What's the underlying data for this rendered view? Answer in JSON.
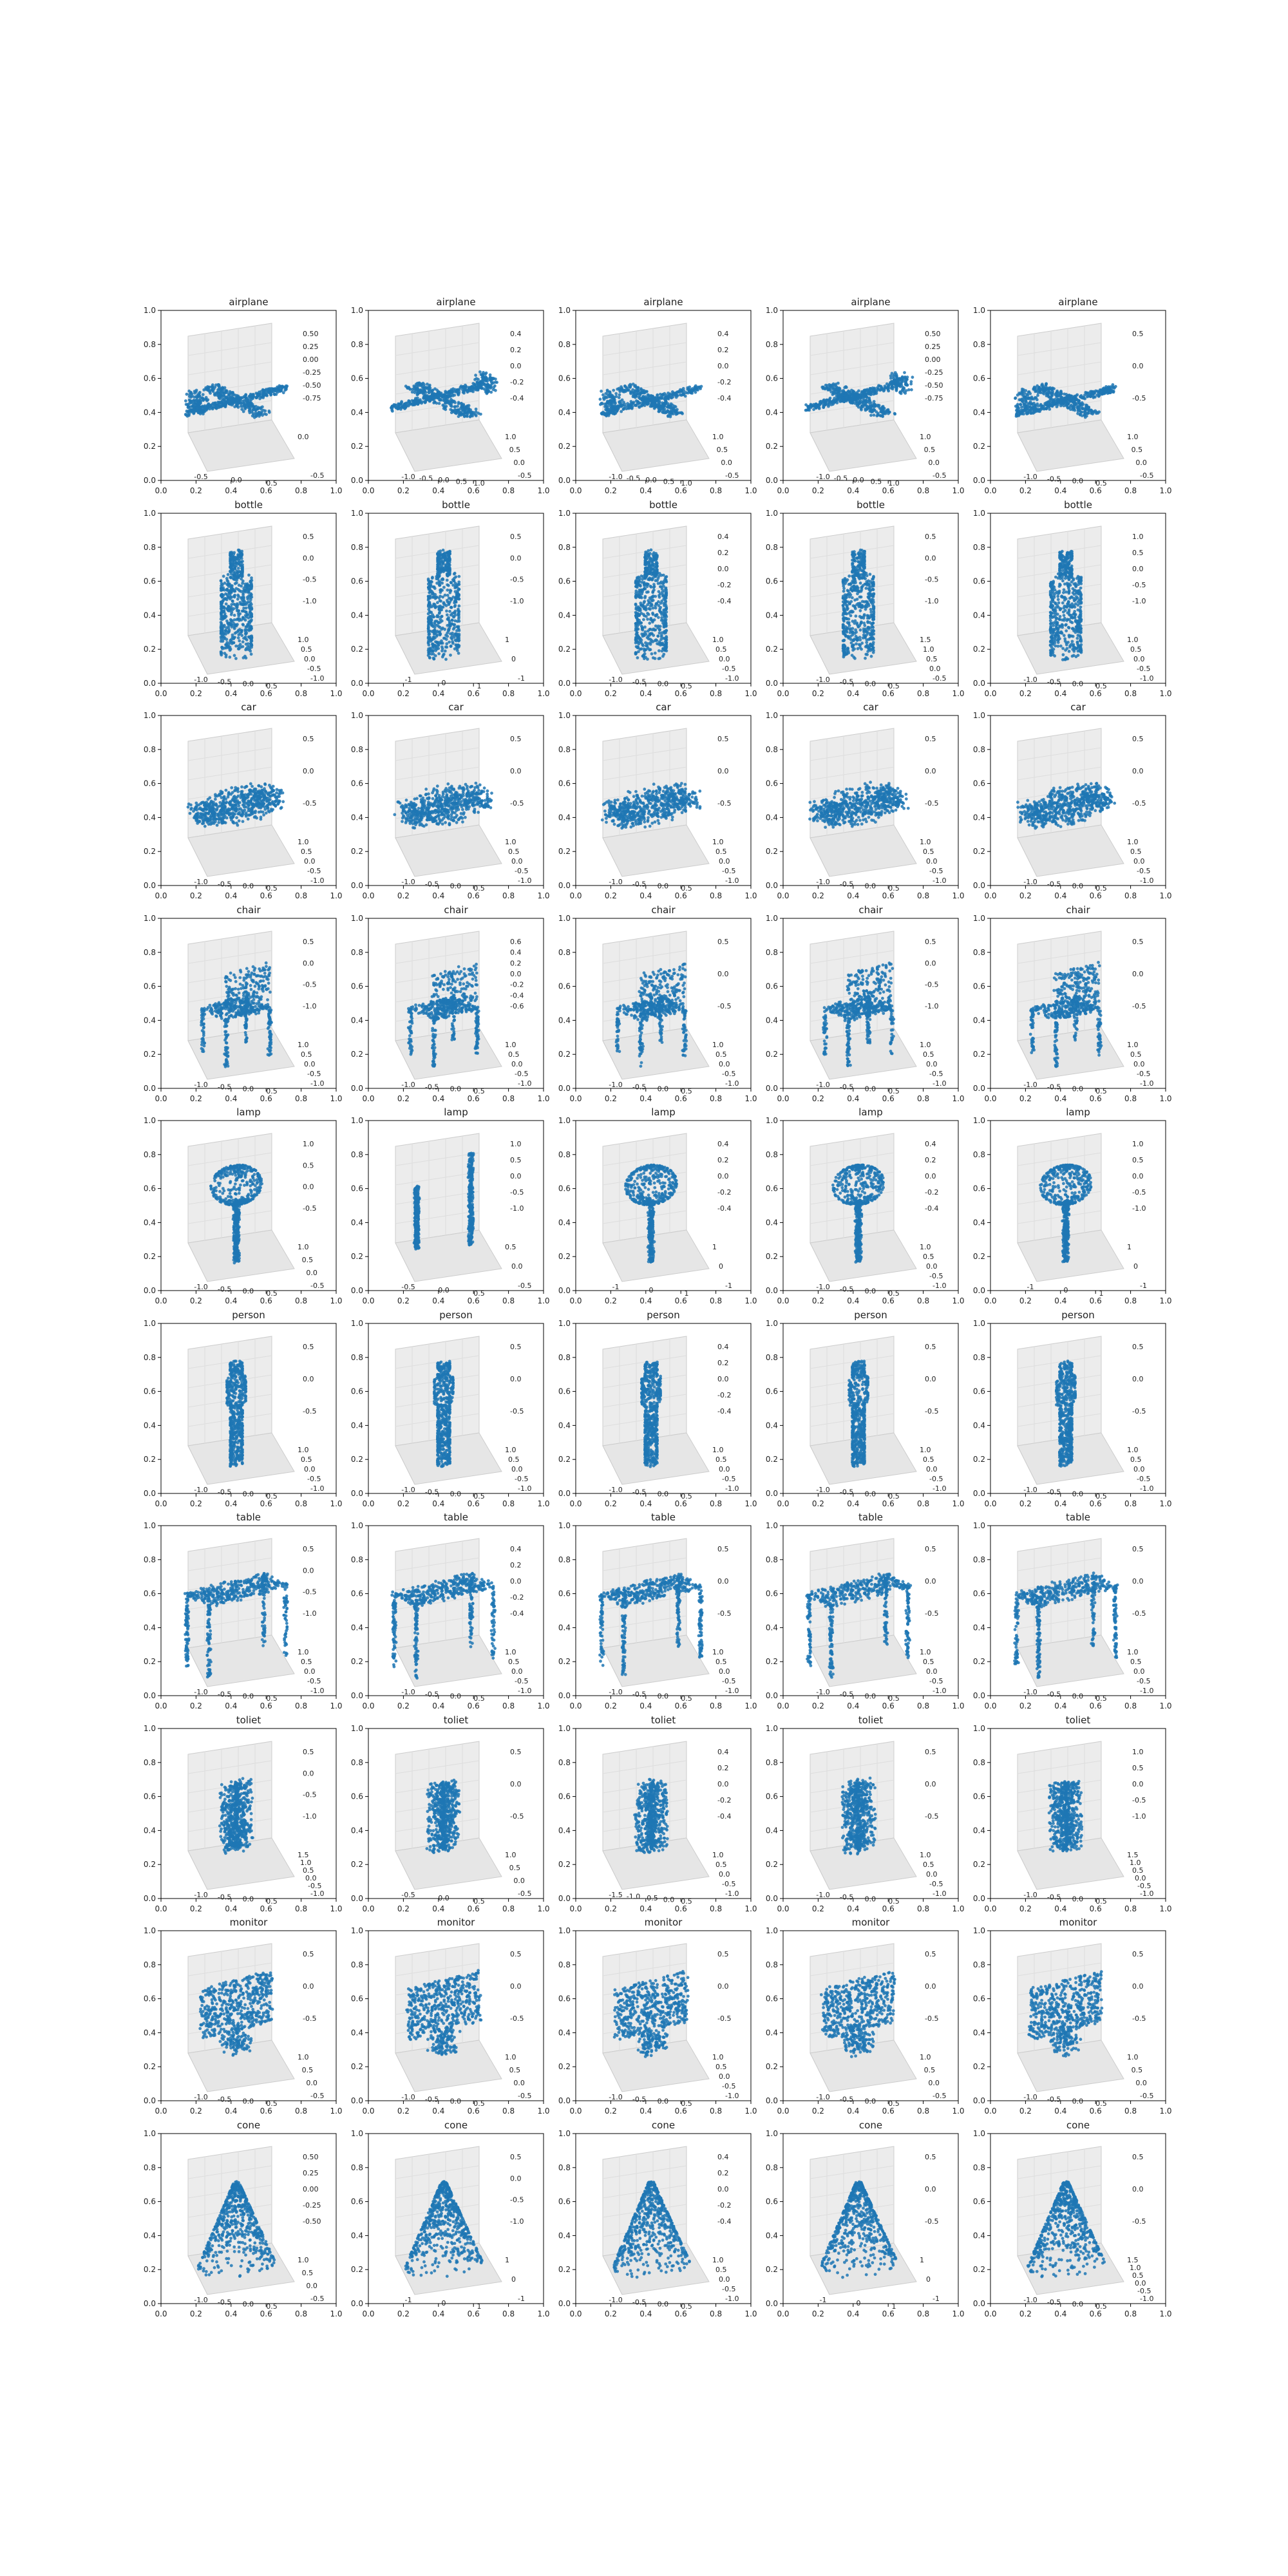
{
  "figure": {
    "rows": [
      "airplane",
      "bottle",
      "car",
      "chair",
      "lamp",
      "person",
      "table",
      "toliet",
      "monitor",
      "cone"
    ],
    "columns": 5
  },
  "chart_data": {
    "type": "scatter",
    "description_units": "each panel is a 3D point-cloud scatter drawn over a 2D axes frame",
    "outer_axes": {
      "xlim": [
        0.0,
        1.0
      ],
      "ylim": [
        0.0,
        1.0
      ],
      "xticks": [
        "0.0",
        "0.2",
        "0.4",
        "0.6",
        "0.8",
        "1.0"
      ],
      "yticks": [
        "0.0",
        "0.2",
        "0.4",
        "0.6",
        "0.8",
        "1.0"
      ]
    },
    "marker_color": "#1f77b4",
    "pane_color": "#f2f2f2",
    "panels": [
      {
        "title": "airplane",
        "shape": "airplane",
        "xticks": [
          "-0.5",
          "0.0",
          "0.5"
        ],
        "yticks": [
          "-0.5",
          "0.0"
        ],
        "zticks": [
          "0.50",
          "0.25",
          "0.00",
          "-0.25",
          "-0.50",
          "-0.75"
        ]
      },
      {
        "title": "airplane",
        "shape": "airplane2",
        "xticks": [
          "-1.0",
          "-0.5",
          "0.0",
          "0.5",
          "1.0"
        ],
        "yticks": [
          "-0.5",
          "0.0",
          "0.5",
          "1.0"
        ],
        "zticks": [
          "0.4",
          "0.2",
          "0.0",
          "-0.2",
          "-0.4"
        ]
      },
      {
        "title": "airplane",
        "shape": "airplane",
        "xticks": [
          "-1.0",
          "-0.5",
          "0.0",
          "0.5",
          "1.0"
        ],
        "yticks": [
          "-0.5",
          "0.0",
          "0.5",
          "1.0"
        ],
        "zticks": [
          "0.4",
          "0.2",
          "0.0",
          "-0.2",
          "-0.4"
        ]
      },
      {
        "title": "airplane",
        "shape": "airplane2",
        "xticks": [
          "-1.0",
          "-0.5",
          "0.0",
          "0.5",
          "1.0"
        ],
        "yticks": [
          "-0.5",
          "0.0",
          "0.5",
          "1.0"
        ],
        "zticks": [
          "0.50",
          "0.25",
          "0.00",
          "-0.25",
          "-0.50",
          "-0.75"
        ]
      },
      {
        "title": "airplane",
        "shape": "airplane",
        "xticks": [
          "-1.0",
          "-0.5",
          "0.0",
          "0.5"
        ],
        "yticks": [
          "-0.5",
          "0.0",
          "0.5",
          "1.0"
        ],
        "zticks": [
          "0.5",
          "0.0",
          "-0.5"
        ]
      },
      {
        "title": "bottle",
        "shape": "bottle",
        "xticks": [
          "-1.0",
          "-0.5",
          "0.0",
          "0.5"
        ],
        "yticks": [
          "-1.0",
          "-0.5",
          "0.0",
          "0.5",
          "1.0"
        ],
        "zticks": [
          "0.5",
          "0.0",
          "-0.5",
          "-1.0"
        ]
      },
      {
        "title": "bottle",
        "shape": "bottle",
        "xticks": [
          "-1",
          "0",
          "1"
        ],
        "yticks": [
          "-1",
          "0",
          "1"
        ],
        "zticks": [
          "0.5",
          "0.0",
          "-0.5",
          "-1.0"
        ]
      },
      {
        "title": "bottle",
        "shape": "bottle",
        "xticks": [
          "-1.0",
          "-0.5",
          "0.0",
          "0.5"
        ],
        "yticks": [
          "-1.0",
          "-0.5",
          "0.0",
          "0.5",
          "1.0"
        ],
        "zticks": [
          "0.4",
          "0.2",
          "0.0",
          "-0.2",
          "-0.4"
        ]
      },
      {
        "title": "bottle",
        "shape": "bottle",
        "xticks": [
          "-1.0",
          "-0.5",
          "0.0",
          "0.5"
        ],
        "yticks": [
          "-0.5",
          "0.0",
          "0.5",
          "1.0",
          "1.5"
        ],
        "zticks": [
          "0.5",
          "0.0",
          "-0.5",
          "-1.0"
        ]
      },
      {
        "title": "bottle",
        "shape": "bottle",
        "xticks": [
          "-1.0",
          "-0.5",
          "0.0",
          "0.5"
        ],
        "yticks": [
          "-1.0",
          "-0.5",
          "0.0",
          "0.5",
          "1.0"
        ],
        "zticks": [
          "1.0",
          "0.5",
          "0.0",
          "-0.5",
          "-1.0"
        ]
      },
      {
        "title": "car",
        "shape": "car",
        "xticks": [
          "-1.0",
          "-0.5",
          "0.0",
          "0.5"
        ],
        "yticks": [
          "-1.0",
          "-0.5",
          "0.0",
          "0.5",
          "1.0"
        ],
        "zticks": [
          "0.5",
          "0.0",
          "-0.5"
        ]
      },
      {
        "title": "car",
        "shape": "car",
        "xticks": [
          "-1.0",
          "-0.5",
          "0.0",
          "0.5"
        ],
        "yticks": [
          "-1.0",
          "-0.5",
          "0.0",
          "0.5",
          "1.0"
        ],
        "zticks": [
          "0.5",
          "0.0",
          "-0.5"
        ]
      },
      {
        "title": "car",
        "shape": "car",
        "xticks": [
          "-1.0",
          "-0.5",
          "0.0",
          "0.5"
        ],
        "yticks": [
          "-1.0",
          "-0.5",
          "0.0",
          "0.5",
          "1.0"
        ],
        "zticks": [
          "0.5",
          "0.0",
          "-0.5"
        ]
      },
      {
        "title": "car",
        "shape": "car",
        "xticks": [
          "-1.0",
          "-0.5",
          "0.0",
          "0.5"
        ],
        "yticks": [
          "-1.0",
          "-0.5",
          "0.0",
          "0.5",
          "1.0"
        ],
        "zticks": [
          "0.5",
          "0.0",
          "-0.5"
        ]
      },
      {
        "title": "car",
        "shape": "car",
        "xticks": [
          "-1.0",
          "-0.5",
          "0.0",
          "0.5"
        ],
        "yticks": [
          "-1.0",
          "-0.5",
          "0.0",
          "0.5",
          "1.0"
        ],
        "zticks": [
          "0.5",
          "0.0",
          "-0.5"
        ]
      },
      {
        "title": "chair",
        "shape": "chair",
        "xticks": [
          "-1.0",
          "-0.5",
          "0.0",
          "0.5"
        ],
        "yticks": [
          "-1.0",
          "-0.5",
          "0.0",
          "0.5",
          "1.0"
        ],
        "zticks": [
          "0.5",
          "0.0",
          "-0.5",
          "-1.0"
        ]
      },
      {
        "title": "chair",
        "shape": "chair",
        "xticks": [
          "-1.0",
          "-0.5",
          "0.0",
          "0.5"
        ],
        "yticks": [
          "-1.0",
          "-0.5",
          "0.0",
          "0.5",
          "1.0"
        ],
        "zticks": [
          "0.6",
          "0.4",
          "0.2",
          "0.0",
          "-0.2",
          "-0.4",
          "-0.6"
        ]
      },
      {
        "title": "chair",
        "shape": "chair",
        "xticks": [
          "-1.0",
          "-0.5",
          "0.0",
          "0.5"
        ],
        "yticks": [
          "-1.0",
          "-0.5",
          "0.0",
          "0.5",
          "1.0"
        ],
        "zticks": [
          "0.5",
          "0.0",
          "-0.5"
        ]
      },
      {
        "title": "chair",
        "shape": "chair",
        "xticks": [
          "-1.0",
          "-0.5",
          "0.0",
          "0.5"
        ],
        "yticks": [
          "-1.0",
          "-0.5",
          "0.0",
          "0.5",
          "1.0"
        ],
        "zticks": [
          "0.5",
          "0.0",
          "-0.5",
          "-1.0"
        ]
      },
      {
        "title": "chair",
        "shape": "chair",
        "xticks": [
          "-1.0",
          "-0.5",
          "0.0",
          "0.5"
        ],
        "yticks": [
          "-1.0",
          "-0.5",
          "0.0",
          "0.5",
          "1.0"
        ],
        "zticks": [
          "0.5",
          "0.0",
          "-0.5"
        ]
      },
      {
        "title": "lamp",
        "shape": "lamp",
        "xticks": [
          "-1.0",
          "-0.5",
          "0.0",
          "0.5"
        ],
        "yticks": [
          "-0.5",
          "0.0",
          "0.5",
          "1.0"
        ],
        "zticks": [
          "1.0",
          "0.5",
          "0.0",
          "-0.5"
        ]
      },
      {
        "title": "lamp",
        "shape": "lamp2",
        "xticks": [
          "-0.5",
          "0.0",
          "0.5"
        ],
        "yticks": [
          "-0.5",
          "0.0",
          "0.5"
        ],
        "zticks": [
          "1.0",
          "0.5",
          "0.0",
          "-0.5",
          "-1.0"
        ]
      },
      {
        "title": "lamp",
        "shape": "lamp",
        "xticks": [
          "-1",
          "0",
          "1"
        ],
        "yticks": [
          "-1",
          "0",
          "1"
        ],
        "zticks": [
          "0.4",
          "0.2",
          "0.0",
          "-0.2",
          "-0.4"
        ]
      },
      {
        "title": "lamp",
        "shape": "lamp",
        "xticks": [
          "-1.0",
          "-0.5",
          "0.0",
          "0.5"
        ],
        "yticks": [
          "-1.0",
          "-0.5",
          "0.0",
          "0.5",
          "1.0"
        ],
        "zticks": [
          "0.4",
          "0.2",
          "0.0",
          "-0.2",
          "-0.4"
        ]
      },
      {
        "title": "lamp",
        "shape": "lamp",
        "xticks": [
          "-1",
          "0",
          "1"
        ],
        "yticks": [
          "-1",
          "0",
          "1"
        ],
        "zticks": [
          "1.0",
          "0.5",
          "0.0",
          "-0.5",
          "-1.0"
        ]
      },
      {
        "title": "person",
        "shape": "person",
        "xticks": [
          "-1.0",
          "-0.5",
          "0.0",
          "0.5"
        ],
        "yticks": [
          "-1.0",
          "-0.5",
          "0.0",
          "0.5",
          "1.0"
        ],
        "zticks": [
          "0.5",
          "0.0",
          "-0.5"
        ]
      },
      {
        "title": "person",
        "shape": "person",
        "xticks": [
          "-1.0",
          "-0.5",
          "0.0",
          "0.5"
        ],
        "yticks": [
          "-1.0",
          "-0.5",
          "0.0",
          "0.5",
          "1.0"
        ],
        "zticks": [
          "0.5",
          "0.0",
          "-0.5"
        ]
      },
      {
        "title": "person",
        "shape": "person",
        "xticks": [
          "-1.0",
          "-0.5",
          "0.0",
          "0.5"
        ],
        "yticks": [
          "-1.0",
          "-0.5",
          "0.0",
          "0.5",
          "1.0"
        ],
        "zticks": [
          "0.4",
          "0.2",
          "0.0",
          "-0.2",
          "-0.4"
        ]
      },
      {
        "title": "person",
        "shape": "person",
        "xticks": [
          "-1.0",
          "-0.5",
          "0.0",
          "0.5"
        ],
        "yticks": [
          "-1.0",
          "-0.5",
          "0.0",
          "0.5",
          "1.0"
        ],
        "zticks": [
          "0.5",
          "0.0",
          "-0.5"
        ]
      },
      {
        "title": "person",
        "shape": "person",
        "xticks": [
          "-1.0",
          "-0.5",
          "0.0",
          "0.5"
        ],
        "yticks": [
          "-1.0",
          "-0.5",
          "0.0",
          "0.5",
          "1.0"
        ],
        "zticks": [
          "0.5",
          "0.0",
          "-0.5"
        ]
      },
      {
        "title": "table",
        "shape": "table",
        "xticks": [
          "-1.0",
          "-0.5",
          "0.0",
          "0.5"
        ],
        "yticks": [
          "-1.0",
          "-0.5",
          "0.0",
          "0.5",
          "1.0"
        ],
        "zticks": [
          "0.5",
          "0.0",
          "-0.5",
          "-1.0"
        ]
      },
      {
        "title": "table",
        "shape": "table",
        "xticks": [
          "-1.0",
          "-0.5",
          "0.0",
          "0.5"
        ],
        "yticks": [
          "-1.0",
          "-0.5",
          "0.0",
          "0.5",
          "1.0"
        ],
        "zticks": [
          "0.4",
          "0.2",
          "0.0",
          "-0.2",
          "-0.4"
        ]
      },
      {
        "title": "table",
        "shape": "table",
        "xticks": [
          "-1.0",
          "-0.5",
          "0.0",
          "0.5"
        ],
        "yticks": [
          "-1.0",
          "-0.5",
          "0.0",
          "0.5",
          "1.0"
        ],
        "zticks": [
          "0.5",
          "0.0",
          "-0.5"
        ]
      },
      {
        "title": "table",
        "shape": "table",
        "xticks": [
          "-1.0",
          "-0.5",
          "0.0",
          "0.5"
        ],
        "yticks": [
          "-1.0",
          "-0.5",
          "0.0",
          "0.5",
          "1.0"
        ],
        "zticks": [
          "0.5",
          "0.0",
          "-0.5"
        ]
      },
      {
        "title": "table",
        "shape": "table",
        "xticks": [
          "-1.0",
          "-0.5",
          "0.0",
          "0.5"
        ],
        "yticks": [
          "-1.0",
          "-0.5",
          "0.0",
          "0.5",
          "1.0"
        ],
        "zticks": [
          "0.5",
          "0.0",
          "-0.5"
        ]
      },
      {
        "title": "toliet",
        "shape": "toilet",
        "xticks": [
          "-1.0",
          "-0.5",
          "0.0",
          "0.5"
        ],
        "yticks": [
          "-1.0",
          "-0.5",
          "0.0",
          "0.5",
          "1.0",
          "1.5"
        ],
        "zticks": [
          "0.5",
          "0.0",
          "-0.5",
          "-1.0"
        ]
      },
      {
        "title": "toliet",
        "shape": "toilet",
        "xticks": [
          "-0.5",
          "0.0",
          "0.5"
        ],
        "yticks": [
          "-0.5",
          "0.0",
          "0.5",
          "1.0"
        ],
        "zticks": [
          "0.5",
          "0.0",
          "-0.5"
        ]
      },
      {
        "title": "toliet",
        "shape": "toilet",
        "xticks": [
          "-1.5",
          "-1.0",
          "-0.5",
          "0.0",
          "0.5"
        ],
        "yticks": [
          "-1.0",
          "-0.5",
          "0.0",
          "0.5",
          "1.0"
        ],
        "zticks": [
          "0.4",
          "0.2",
          "0.0",
          "-0.2",
          "-0.4"
        ]
      },
      {
        "title": "toliet",
        "shape": "toilet",
        "xticks": [
          "-1.0",
          "-0.5",
          "0.0",
          "0.5"
        ],
        "yticks": [
          "-1.0",
          "-0.5",
          "0.0",
          "0.5",
          "1.0"
        ],
        "zticks": [
          "0.5",
          "0.0",
          "-0.5"
        ]
      },
      {
        "title": "toliet",
        "shape": "toilet",
        "xticks": [
          "-1.0",
          "-0.5",
          "0.0",
          "0.5"
        ],
        "yticks": [
          "-1.0",
          "-0.5",
          "0.0",
          "0.5",
          "1.0",
          "1.5"
        ],
        "zticks": [
          "1.0",
          "0.5",
          "0.0",
          "-0.5",
          "-1.0"
        ]
      },
      {
        "title": "monitor",
        "shape": "monitor",
        "xticks": [
          "-1.0",
          "-0.5",
          "0.0",
          "0.5"
        ],
        "yticks": [
          "-0.5",
          "0.0",
          "0.5",
          "1.0"
        ],
        "zticks": [
          "0.5",
          "0.0",
          "-0.5"
        ]
      },
      {
        "title": "monitor",
        "shape": "monitor",
        "xticks": [
          "-1.0",
          "-0.5",
          "0.0",
          "0.5"
        ],
        "yticks": [
          "-0.5",
          "0.0",
          "0.5",
          "1.0"
        ],
        "zticks": [
          "0.5",
          "0.0",
          "-0.5"
        ]
      },
      {
        "title": "monitor",
        "shape": "monitor",
        "xticks": [
          "-1.0",
          "-0.5",
          "0.0",
          "0.5"
        ],
        "yticks": [
          "-1.0",
          "-0.5",
          "0.0",
          "0.5",
          "1.0"
        ],
        "zticks": [
          "0.5",
          "0.0",
          "-0.5"
        ]
      },
      {
        "title": "monitor",
        "shape": "monitor",
        "xticks": [
          "-1.0",
          "-0.5",
          "0.0",
          "0.5"
        ],
        "yticks": [
          "-0.5",
          "0.0",
          "0.5",
          "1.0"
        ],
        "zticks": [
          "0.5",
          "0.0",
          "-0.5"
        ]
      },
      {
        "title": "monitor",
        "shape": "monitor",
        "xticks": [
          "-1.0",
          "-0.5",
          "0.0",
          "0.5"
        ],
        "yticks": [
          "-0.5",
          "0.0",
          "0.5",
          "1.0"
        ],
        "zticks": [
          "0.5",
          "0.0",
          "-0.5"
        ]
      },
      {
        "title": "cone",
        "shape": "cone",
        "xticks": [
          "-1.0",
          "-0.5",
          "0.0",
          "0.5"
        ],
        "yticks": [
          "-0.5",
          "0.0",
          "0.5",
          "1.0"
        ],
        "zticks": [
          "0.50",
          "0.25",
          "0.00",
          "-0.25",
          "-0.50"
        ]
      },
      {
        "title": "cone",
        "shape": "cone",
        "xticks": [
          "-1",
          "0",
          "1"
        ],
        "yticks": [
          "-1",
          "0",
          "1"
        ],
        "zticks": [
          "0.5",
          "0.0",
          "-0.5",
          "-1.0"
        ]
      },
      {
        "title": "cone",
        "shape": "cone",
        "xticks": [
          "-1.0",
          "-0.5",
          "0.0",
          "0.5"
        ],
        "yticks": [
          "-1.0",
          "-0.5",
          "0.0",
          "0.5",
          "1.0"
        ],
        "zticks": [
          "0.4",
          "0.2",
          "0.0",
          "-0.2",
          "-0.4"
        ]
      },
      {
        "title": "cone",
        "shape": "cone",
        "xticks": [
          "-1",
          "0",
          "1"
        ],
        "yticks": [
          "-1",
          "0",
          "1"
        ],
        "zticks": [
          "0.5",
          "0.0",
          "-0.5"
        ]
      },
      {
        "title": "cone",
        "shape": "cone",
        "xticks": [
          "-1.0",
          "-0.5",
          "0.0",
          "0.5"
        ],
        "yticks": [
          "-1.0",
          "-0.5",
          "0.0",
          "0.5",
          "1.0",
          "1.5"
        ],
        "zticks": [
          "0.5",
          "0.0",
          "-0.5"
        ]
      }
    ]
  }
}
